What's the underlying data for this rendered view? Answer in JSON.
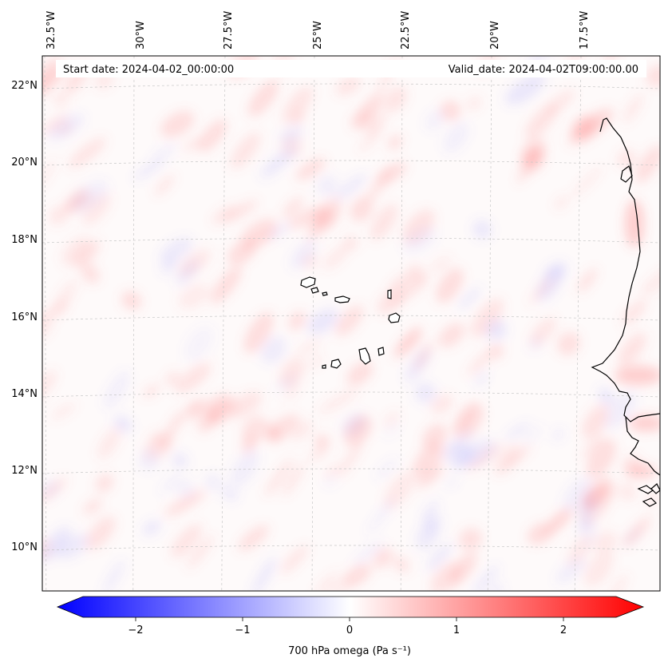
{
  "header": {
    "start_date": "Start date: 2024-04-02_00:00:00",
    "valid_date": "Valid_date: 2024-04-02T09:00:00.00"
  },
  "map": {
    "lon_labels": [
      "32.5°W",
      "30°W",
      "27.5°W",
      "25°W",
      "22.5°W",
      "20°W",
      "17.5°W"
    ],
    "lat_labels": [
      "22°N",
      "20°N",
      "18°N",
      "16°N",
      "14°N",
      "12°N",
      "10°N"
    ],
    "positive_color": "#ff0000",
    "negative_color": "#0000ff",
    "coastline_color": "#000000"
  },
  "colorbar": {
    "label": "700 hPa omega (Pa s⁻¹)",
    "ticks": [
      "−2",
      "−1",
      "0",
      "1",
      "2"
    ],
    "min": -2.6,
    "max": 2.6,
    "low_color": "#0000ff",
    "mid_color": "#ffffff",
    "high_color": "#ff0000"
  }
}
